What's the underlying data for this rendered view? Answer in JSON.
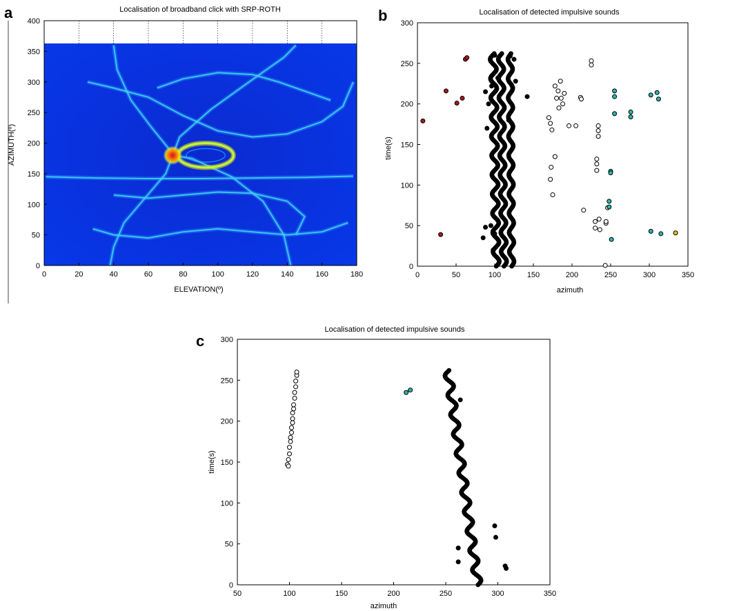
{
  "panels": [
    "a",
    "b",
    "c"
  ],
  "chart_data": [
    {
      "type": "heatmap",
      "panel": "a",
      "title": "Localisation of broadband click with SRP-ROTH",
      "xlabel": "ELEVATION(º)",
      "ylabel": "AZIMUTH(º)",
      "xlim": [
        0,
        180
      ],
      "ylim": [
        0,
        400
      ],
      "data_extent_y": [
        0,
        360
      ],
      "xticks": [
        0,
        20,
        40,
        60,
        80,
        100,
        120,
        140,
        160,
        180
      ],
      "yticks": [
        0,
        50,
        100,
        150,
        200,
        250,
        300,
        350,
        400
      ],
      "grid": true,
      "colors": {
        "background": "#0b2fd6",
        "trace": "#3fd0ff",
        "peak": "#c8102e",
        "hot": "#ffe600"
      },
      "peak": {
        "x": 74,
        "y": 180
      },
      "ellipse": {
        "cx": 93,
        "cy": 180,
        "rx": 16,
        "ry": 20
      },
      "traces": [
        {
          "name": "",
          "points": [
            [
              40,
              360
            ],
            [
              42,
              320
            ],
            [
              50,
              270
            ],
            [
              62,
              225
            ],
            [
              72,
              190
            ],
            [
              74,
              180
            ],
            [
              70,
              150
            ],
            [
              58,
              110
            ],
            [
              46,
              70
            ],
            [
              40,
              30
            ],
            [
              38,
              0
            ]
          ]
        },
        {
          "name": "",
          "points": [
            [
              142,
              0
            ],
            [
              138,
              50
            ],
            [
              126,
              105
            ],
            [
              108,
              145
            ],
            [
              85,
              175
            ],
            [
              74,
              180
            ],
            [
              78,
              210
            ],
            [
              96,
              255
            ],
            [
              118,
              300
            ],
            [
              138,
              340
            ],
            [
              145,
              360
            ]
          ]
        },
        {
          "name": "",
          "points": [
            [
              25,
              300
            ],
            [
              40,
              290
            ],
            [
              60,
              275
            ],
            [
              80,
              245
            ],
            [
              100,
              220
            ],
            [
              120,
              210
            ],
            [
              140,
              215
            ],
            [
              160,
              235
            ],
            [
              172,
              260
            ],
            [
              178,
              300
            ]
          ]
        },
        {
          "name": "",
          "points": [
            [
              28,
              60
            ],
            [
              40,
              50
            ],
            [
              60,
              45
            ],
            [
              80,
              55
            ],
            [
              100,
              60
            ],
            [
              120,
              55
            ],
            [
              140,
              50
            ],
            [
              160,
              55
            ],
            [
              175,
              70
            ]
          ]
        },
        {
          "name": "",
          "points": [
            [
              1,
              145
            ],
            [
              30,
              143
            ],
            [
              60,
              142
            ],
            [
              90,
              142
            ],
            [
              120,
              143
            ],
            [
              150,
              144
            ],
            [
              178,
              146
            ]
          ]
        },
        {
          "name": "",
          "points": [
            [
              65,
              290
            ],
            [
              80,
              305
            ],
            [
              100,
              315
            ],
            [
              120,
              312
            ],
            [
              135,
              300
            ],
            [
              150,
              285
            ],
            [
              165,
              270
            ]
          ]
        },
        {
          "name": "",
          "points": [
            [
              40,
              115
            ],
            [
              60,
              110
            ],
            [
              80,
              115
            ],
            [
              100,
              120
            ],
            [
              120,
              118
            ],
            [
              140,
              105
            ],
            [
              150,
              80
            ],
            [
              145,
              50
            ]
          ]
        }
      ]
    },
    {
      "type": "scatter",
      "panel": "b",
      "title": "Localisation of detected impulsive sounds",
      "xlabel": "azimuth",
      "ylabel": "time(s)",
      "xlim": [
        0,
        350
      ],
      "ylim": [
        0,
        300
      ],
      "xticks": [
        0,
        50,
        100,
        150,
        200,
        250,
        300,
        350
      ],
      "yticks": [
        0,
        50,
        100,
        150,
        200,
        250,
        300
      ],
      "series": [
        {
          "name": "",
          "color": "#000000",
          "bands": [
            {
              "x_at_y0": 102,
              "x_at_y1": 98,
              "y0": 0,
              "y1": 262,
              "width": 8
            },
            {
              "x_at_y0": 112,
              "x_at_y1": 108,
              "y0": 0,
              "y1": 262,
              "width": 7
            },
            {
              "x_at_y0": 122,
              "x_at_y1": 120,
              "y0": 0,
              "y1": 262,
              "width": 6
            }
          ],
          "points": [
            [
              88,
              48
            ],
            [
              85,
              35
            ],
            [
              90,
              170
            ],
            [
              92,
              200
            ],
            [
              88,
              215
            ],
            [
              95,
              50
            ],
            [
              98,
              20
            ],
            [
              100,
              40
            ],
            [
              127,
              228
            ],
            [
              142,
              209
            ],
            [
              125,
              255
            ],
            [
              120,
              259
            ],
            [
              96,
              222
            ],
            [
              100,
              260
            ],
            [
              104,
              232
            ],
            [
              118,
              180
            ]
          ]
        },
        {
          "name": "",
          "color": "#ffffff",
          "points": [
            [
              170,
              183
            ],
            [
              172,
              176
            ],
            [
              174,
              168
            ],
            [
              173,
              122
            ],
            [
              172,
              107
            ],
            [
              175,
              88
            ],
            [
              178,
              135
            ],
            [
              178,
              222
            ],
            [
              180,
              207
            ],
            [
              182,
              216
            ],
            [
              183,
              195
            ],
            [
              185,
              228
            ],
            [
              186,
              207
            ],
            [
              188,
              200
            ],
            [
              190,
              213
            ],
            [
              196,
              173
            ],
            [
              205,
              173
            ],
            [
              211,
              208
            ],
            [
              212,
              206
            ],
            [
              215,
              69
            ],
            [
              225,
              253
            ],
            [
              225,
              248
            ],
            [
              230,
              47
            ],
            [
              230,
              55
            ],
            [
              232,
              132
            ],
            [
              232,
              126
            ],
            [
              232,
              118
            ],
            [
              234,
              173
            ],
            [
              234,
              167
            ],
            [
              234,
              160
            ],
            [
              235,
              58
            ],
            [
              236,
              45
            ],
            [
              243,
              1
            ],
            [
              244,
              53
            ],
            [
              244,
              55
            ],
            [
              246,
              72
            ]
          ]
        },
        {
          "name": "",
          "color": "#2bb5a8",
          "points": [
            [
              248,
              80
            ],
            [
              248,
              73
            ],
            [
              250,
              117
            ],
            [
              250,
              115
            ],
            [
              251,
              33
            ],
            [
              255,
              216
            ],
            [
              255,
              209
            ],
            [
              255,
              188
            ],
            [
              276,
              190
            ],
            [
              276,
              184
            ],
            [
              302,
              211
            ],
            [
              302,
              43
            ],
            [
              310,
              214
            ],
            [
              312,
              206
            ],
            [
              315,
              40
            ]
          ]
        },
        {
          "name": "",
          "color": "#a8191b",
          "points": [
            [
              7,
              179
            ],
            [
              30,
              39
            ],
            [
              37,
              216
            ],
            [
              51,
              201
            ],
            [
              58,
              207
            ],
            [
              62,
              255
            ],
            [
              64,
              257
            ]
          ]
        },
        {
          "name": "",
          "color": "#e6c21a",
          "points": [
            [
              334,
              41
            ]
          ]
        }
      ]
    },
    {
      "type": "scatter",
      "panel": "c",
      "title": "Localisation of detected impulsive sounds",
      "xlabel": "azimuth",
      "ylabel": "time(s)",
      "xlim": [
        50,
        350
      ],
      "ylim": [
        0,
        300
      ],
      "xticks": [
        50,
        100,
        150,
        200,
        250,
        300,
        350
      ],
      "yticks": [
        0,
        50,
        100,
        150,
        200,
        250,
        300
      ],
      "series": [
        {
          "name": "",
          "color": "#000000",
          "bands": [
            {
              "x_at_y0": 281,
              "x_at_y1": 252,
              "y0": 0,
              "y1": 262,
              "width": 7
            }
          ],
          "points": [
            [
              262,
              45
            ],
            [
              262,
              28
            ],
            [
              297,
              72
            ],
            [
              298,
              58
            ],
            [
              307,
              23
            ],
            [
              308,
              20
            ],
            [
              264,
              226
            ]
          ]
        },
        {
          "name": "",
          "color": "#ffffff",
          "points": [
            [
              98,
              147
            ],
            [
              99,
              145
            ],
            [
              99,
              153
            ],
            [
              100,
              160
            ],
            [
              100,
              168
            ],
            [
              101,
              175
            ],
            [
              101,
              180
            ],
            [
              102,
              186
            ],
            [
              102,
              192
            ],
            [
              103,
              198
            ],
            [
              103,
              203
            ],
            [
              103,
              210
            ],
            [
              104,
              215
            ],
            [
              104,
              220
            ],
            [
              105,
              228
            ],
            [
              105,
              235
            ],
            [
              106,
              242
            ],
            [
              106,
              249
            ],
            [
              107,
              256
            ],
            [
              107,
              260
            ]
          ]
        },
        {
          "name": "",
          "color": "#2bb5a8",
          "points": [
            [
              212,
              235
            ],
            [
              216,
              238
            ]
          ]
        }
      ]
    }
  ]
}
